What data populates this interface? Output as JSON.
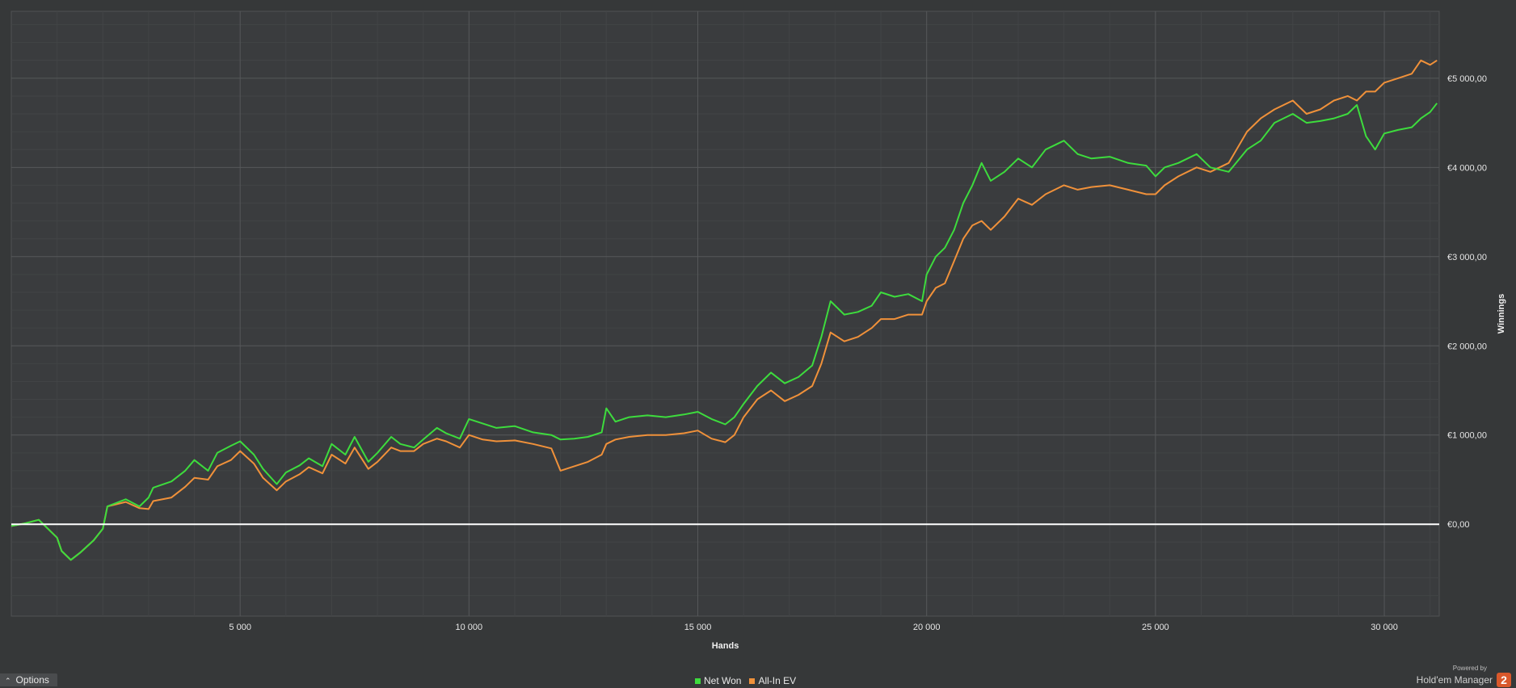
{
  "chart_data": {
    "type": "line",
    "title": "",
    "xlabel": "Hands",
    "ylabel": "Winnings",
    "xlim": [
      0,
      31200
    ],
    "ylim": [
      -1030,
      5750
    ],
    "x_ticks": [
      {
        "value": 5000,
        "label": "5 000"
      },
      {
        "value": 10000,
        "label": "10 000"
      },
      {
        "value": 15000,
        "label": "15 000"
      },
      {
        "value": 20000,
        "label": "20 000"
      },
      {
        "value": 25000,
        "label": "25 000"
      },
      {
        "value": 30000,
        "label": "30 000"
      }
    ],
    "y_ticks": [
      {
        "value": 0,
        "label": "€0,00"
      },
      {
        "value": 1000,
        "label": "€1 000,00"
      },
      {
        "value": 2000,
        "label": "€2 000,00"
      },
      {
        "value": 3000,
        "label": "€3 000,00"
      },
      {
        "value": 4000,
        "label": "€4 000,00"
      },
      {
        "value": 5000,
        "label": "€5 000,00"
      }
    ],
    "grid": true,
    "legend_position": "bottom-center",
    "series": [
      {
        "name": "Net Won",
        "color": "#3ddc3d",
        "x": [
          0,
          300,
          600,
          700,
          1000,
          1100,
          1300,
          1500,
          1800,
          2000,
          2100,
          2500,
          2800,
          3000,
          3100,
          3500,
          3800,
          4000,
          4300,
          4500,
          4800,
          5000,
          5300,
          5500,
          5800,
          6000,
          6300,
          6500,
          6800,
          7000,
          7300,
          7500,
          7800,
          8000,
          8300,
          8500,
          8800,
          9000,
          9300,
          9500,
          9800,
          10000,
          10300,
          10600,
          11000,
          11400,
          11800,
          12000,
          12300,
          12600,
          12900,
          13000,
          13200,
          13500,
          13900,
          14300,
          14700,
          15000,
          15300,
          15600,
          15800,
          16000,
          16300,
          16600,
          16900,
          17200,
          17500,
          17700,
          17900,
          18200,
          18500,
          18800,
          19000,
          19300,
          19600,
          19900,
          20000,
          20200,
          20400,
          20600,
          20800,
          21000,
          21200,
          21400,
          21700,
          22000,
          22300,
          22600,
          23000,
          23300,
          23600,
          24000,
          24400,
          24800,
          25000,
          25200,
          25500,
          25900,
          26200,
          26600,
          27000,
          27300,
          27600,
          28000,
          28300,
          28600,
          28900,
          29200,
          29400,
          29600,
          29800,
          30000,
          30300,
          30600,
          30800,
          31000,
          31150
        ],
        "values": [
          -20,
          10,
          50,
          0,
          -150,
          -300,
          -400,
          -320,
          -180,
          -50,
          200,
          280,
          200,
          300,
          410,
          480,
          600,
          720,
          600,
          800,
          880,
          930,
          780,
          620,
          450,
          580,
          660,
          740,
          650,
          900,
          780,
          980,
          700,
          800,
          980,
          900,
          860,
          950,
          1080,
          1020,
          960,
          1180,
          1130,
          1080,
          1100,
          1030,
          1000,
          950,
          960,
          980,
          1030,
          1300,
          1150,
          1200,
          1220,
          1200,
          1230,
          1260,
          1180,
          1120,
          1200,
          1350,
          1550,
          1700,
          1580,
          1650,
          1780,
          2100,
          2500,
          2350,
          2380,
          2450,
          2600,
          2550,
          2580,
          2500,
          2800,
          3000,
          3100,
          3300,
          3600,
          3800,
          4050,
          3850,
          3950,
          4100,
          4000,
          4200,
          4300,
          4150,
          4100,
          4120,
          4050,
          4020,
          3900,
          4000,
          4050,
          4150,
          4000,
          3950,
          4200,
          4300,
          4500,
          4600,
          4500,
          4520,
          4550,
          4600,
          4700,
          4350,
          4200,
          4380,
          4420,
          4450,
          4550,
          4620,
          4720
        ]
      },
      {
        "name": "All-In EV",
        "color": "#f0913a",
        "x": [
          0,
          300,
          600,
          700,
          1000,
          1100,
          1300,
          1500,
          1800,
          2000,
          2100,
          2500,
          2800,
          3000,
          3100,
          3500,
          3800,
          4000,
          4300,
          4500,
          4800,
          5000,
          5300,
          5500,
          5800,
          6000,
          6300,
          6500,
          6800,
          7000,
          7300,
          7500,
          7800,
          8000,
          8300,
          8500,
          8800,
          9000,
          9300,
          9500,
          9800,
          10000,
          10300,
          10600,
          11000,
          11400,
          11800,
          12000,
          12300,
          12600,
          12900,
          13000,
          13200,
          13500,
          13900,
          14300,
          14700,
          15000,
          15300,
          15600,
          15800,
          16000,
          16300,
          16600,
          16900,
          17200,
          17500,
          17700,
          17900,
          18200,
          18500,
          18800,
          19000,
          19300,
          19600,
          19900,
          20000,
          20200,
          20400,
          20600,
          20800,
          21000,
          21200,
          21400,
          21700,
          22000,
          22300,
          22600,
          23000,
          23300,
          23600,
          24000,
          24400,
          24800,
          25000,
          25200,
          25500,
          25900,
          26200,
          26600,
          27000,
          27300,
          27600,
          28000,
          28300,
          28600,
          28900,
          29200,
          29400,
          29600,
          29800,
          30000,
          30300,
          30600,
          30800,
          31000,
          31150
        ],
        "values": [
          -20,
          10,
          50,
          0,
          -150,
          -300,
          -400,
          -320,
          -180,
          -50,
          200,
          250,
          180,
          170,
          260,
          300,
          420,
          520,
          500,
          650,
          720,
          820,
          680,
          520,
          380,
          480,
          560,
          640,
          570,
          780,
          680,
          860,
          620,
          700,
          860,
          820,
          820,
          900,
          960,
          930,
          860,
          1000,
          950,
          930,
          940,
          900,
          850,
          600,
          650,
          700,
          780,
          900,
          950,
          980,
          1000,
          1000,
          1020,
          1050,
          960,
          920,
          1000,
          1200,
          1400,
          1500,
          1380,
          1450,
          1550,
          1800,
          2150,
          2050,
          2100,
          2200,
          2300,
          2300,
          2350,
          2350,
          2500,
          2650,
          2700,
          2950,
          3200,
          3350,
          3400,
          3300,
          3450,
          3650,
          3580,
          3700,
          3800,
          3750,
          3780,
          3800,
          3750,
          3700,
          3700,
          3800,
          3900,
          4000,
          3950,
          4050,
          4400,
          4550,
          4650,
          4750,
          4600,
          4650,
          4750,
          4800,
          4750,
          4850,
          4850,
          4950,
          5000,
          5050,
          5200,
          5150,
          5200
        ]
      }
    ]
  },
  "ui": {
    "options_label": "Options",
    "legend": [
      {
        "label": "Net Won",
        "color": "#3ddc3d"
      },
      {
        "label": "All-In EV",
        "color": "#f0913a"
      }
    ],
    "brand_powered": "Powered by",
    "brand_name": "Hold'em Manager",
    "brand_logo_text": "2"
  }
}
